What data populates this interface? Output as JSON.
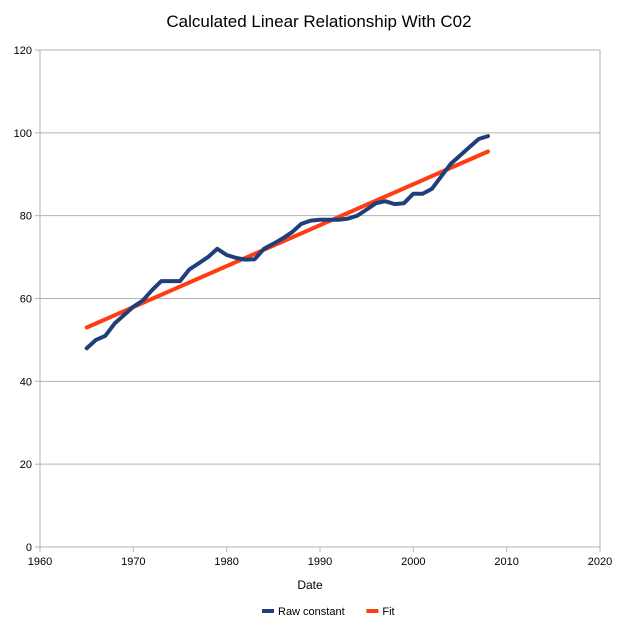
{
  "chart_data": {
    "type": "line",
    "title": "Calculated Linear Relationship With C02",
    "xlabel": "Date",
    "ylabel": "",
    "xlim": [
      1960,
      2020
    ],
    "ylim": [
      0,
      120
    ],
    "x_ticks": [
      1960,
      1970,
      1980,
      1990,
      2000,
      2010,
      2020
    ],
    "y_ticks": [
      0,
      20,
      40,
      60,
      80,
      100,
      120
    ],
    "grid": "horizontal",
    "legend_position": "bottom",
    "series": [
      {
        "name": "Raw constant",
        "color": "#1f3f7a",
        "x": [
          1965,
          1966,
          1967,
          1968,
          1969,
          1970,
          1971,
          1972,
          1973,
          1974,
          1975,
          1976,
          1977,
          1978,
          1979,
          1980,
          1981,
          1982,
          1983,
          1984,
          1985,
          1986,
          1987,
          1988,
          1989,
          1990,
          1991,
          1992,
          1993,
          1994,
          1995,
          1996,
          1997,
          1998,
          1999,
          2000,
          2001,
          2002,
          2003,
          2004,
          2005,
          2006,
          2007,
          2008
        ],
        "values": [
          48,
          50,
          51,
          54,
          56,
          58,
          59.5,
          62,
          64.2,
          64.2,
          64.2,
          67,
          68.5,
          70,
          72,
          70.5,
          69.8,
          69.4,
          69.5,
          72,
          73.2,
          74.5,
          76,
          78,
          78.8,
          79,
          79,
          79,
          79.3,
          80,
          81.5,
          83,
          83.5,
          82.8,
          83,
          85.3,
          85.3,
          86.5,
          89.5,
          92.5,
          94.5,
          96.5,
          98.5,
          99.2
        ]
      },
      {
        "name": "Fit",
        "color": "#ff3c12",
        "x": [
          1965,
          2008
        ],
        "values": [
          53,
          95.5
        ]
      }
    ]
  }
}
